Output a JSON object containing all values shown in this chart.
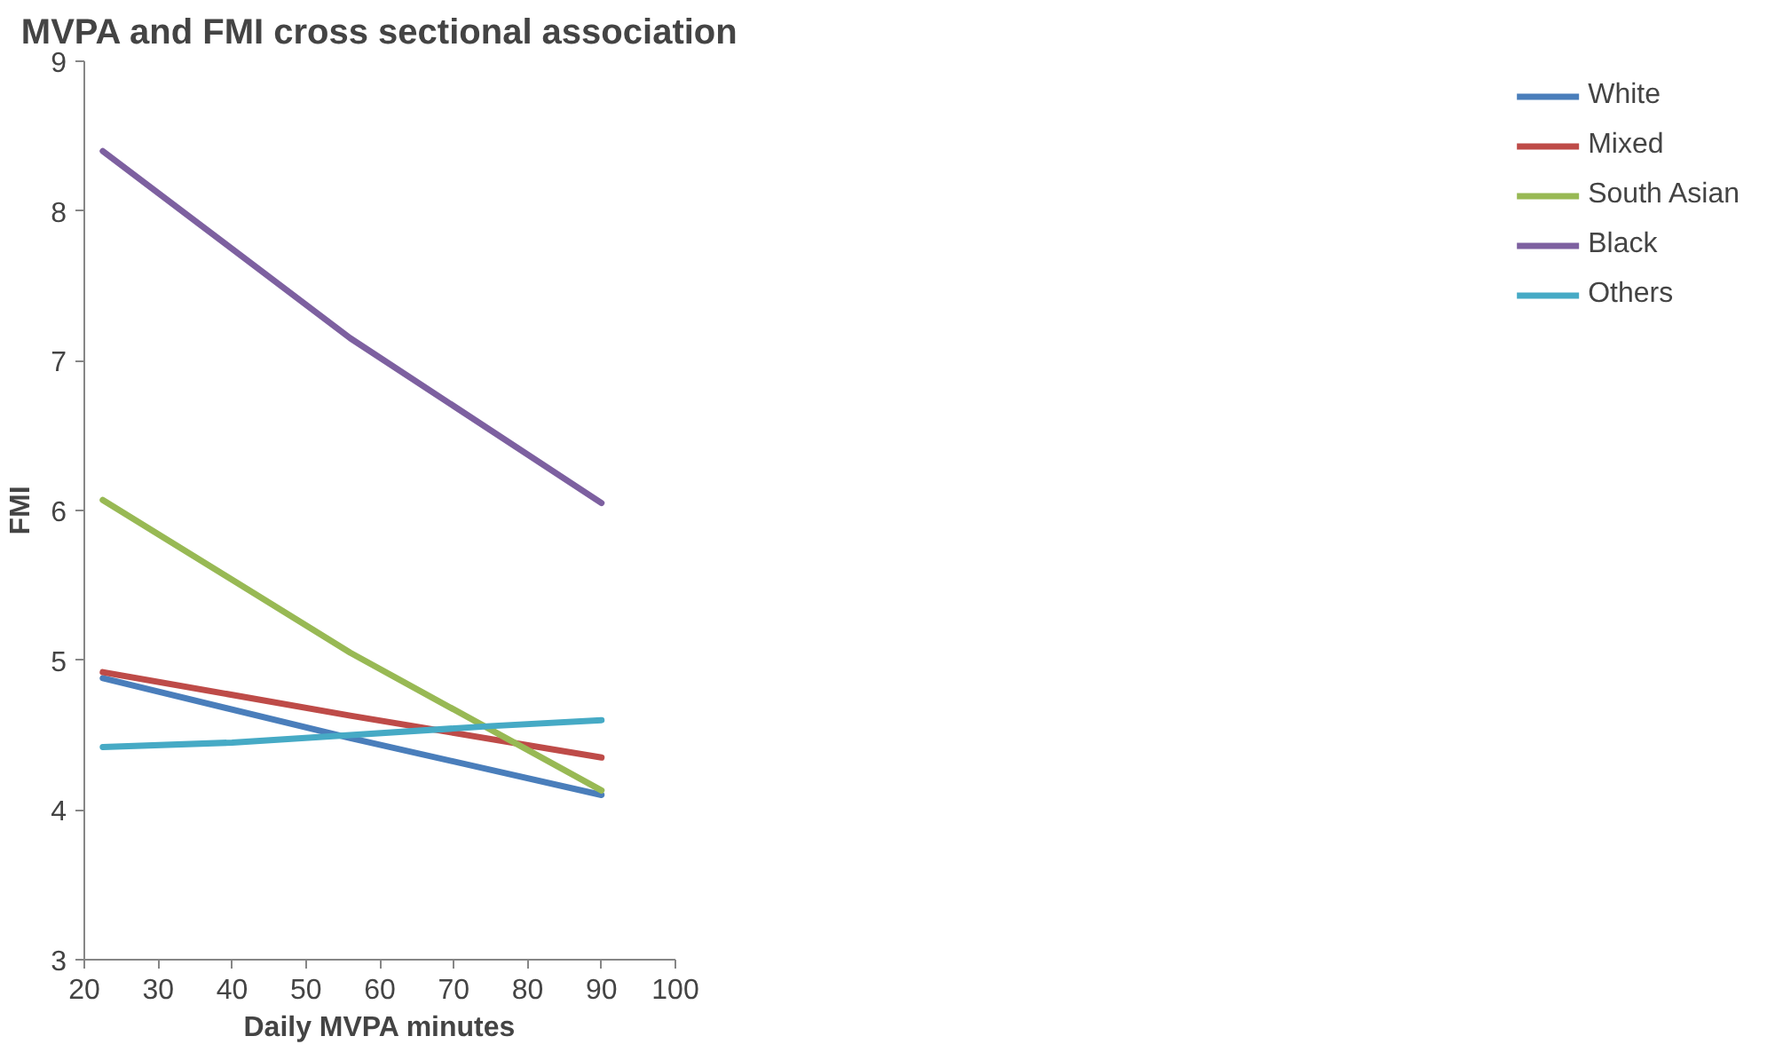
{
  "chart_data": {
    "type": "line",
    "title": "MVPA and FMI cross sectional association",
    "xlabel": "Daily MVPA minutes",
    "ylabel": "FMI",
    "xlim": [
      20,
      100
    ],
    "xticks": [
      20,
      30,
      40,
      50,
      60,
      70,
      80,
      90,
      100
    ],
    "ylim": [
      3,
      9
    ],
    "yticks": [
      3,
      4,
      5,
      6,
      7,
      8,
      9
    ],
    "grid": false,
    "legend": "right",
    "marker": "none",
    "line_style": "solid",
    "series": [
      {
        "name": "White",
        "color": "#4a7ebb",
        "x": [
          22.5,
          56,
          90
        ],
        "values": [
          4.88,
          4.48,
          4.1
        ]
      },
      {
        "name": "Mixed",
        "color": "#be4b48",
        "x": [
          22.5,
          56,
          90
        ],
        "values": [
          4.92,
          4.63,
          4.35
        ]
      },
      {
        "name": "South Asian",
        "color": "#98b954",
        "x": [
          22.5,
          56,
          90
        ],
        "values": [
          6.07,
          5.05,
          4.13
        ]
      },
      {
        "name": "Black",
        "color": "#7d60a0",
        "x": [
          22.5,
          56,
          90
        ],
        "values": [
          8.4,
          7.15,
          6.05
        ]
      },
      {
        "name": "Others",
        "color": "#46aac5",
        "x": [
          22.5,
          40,
          56,
          75,
          90
        ],
        "values": [
          4.42,
          4.45,
          4.5,
          4.56,
          4.6
        ]
      }
    ]
  }
}
